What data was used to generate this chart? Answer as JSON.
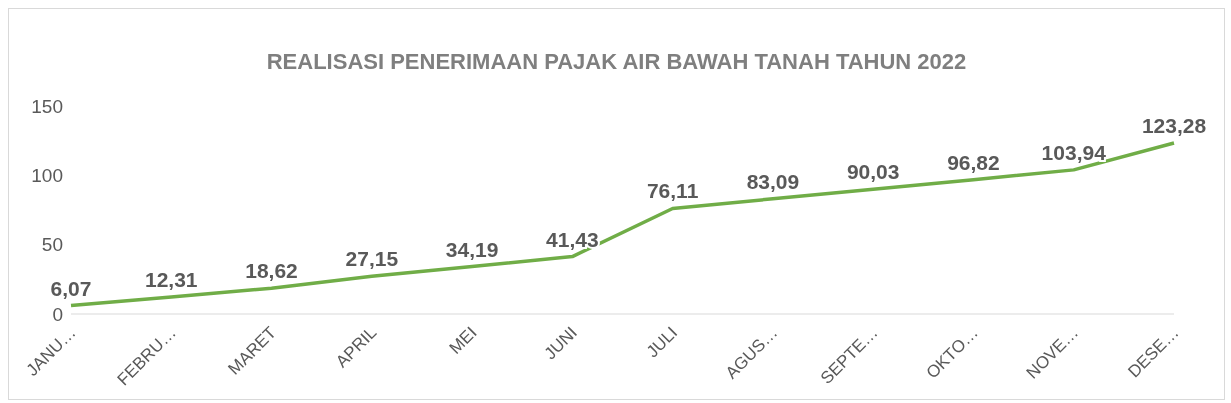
{
  "chart_data": {
    "type": "line",
    "title": "REALISASI PENERIMAAN PAJAK AIR BAWAH TANAH TAHUN 2022",
    "categories": [
      "JANU…",
      "FEBRU…",
      "MARET",
      "APRIL",
      "MEI",
      "JUNI",
      "JULI",
      "AGUS…",
      "SEPTE…",
      "OKTO…",
      "NOVE…",
      "DESE…"
    ],
    "values": [
      6.07,
      12.31,
      18.62,
      27.15,
      34.19,
      41.43,
      76.11,
      83.09,
      90.03,
      96.82,
      103.94,
      123.28
    ],
    "value_labels": [
      "6,07",
      "12,31",
      "18,62",
      "27,15",
      "34,19",
      "41,43",
      "76,11",
      "83,09",
      "90,03",
      "96,82",
      "103,94",
      "123,28"
    ],
    "color": "#70ad47",
    "ylim": [
      0,
      150
    ],
    "yticks": [
      0,
      50,
      100,
      150
    ],
    "grid": false,
    "marker": "none",
    "line_style": "solid"
  }
}
